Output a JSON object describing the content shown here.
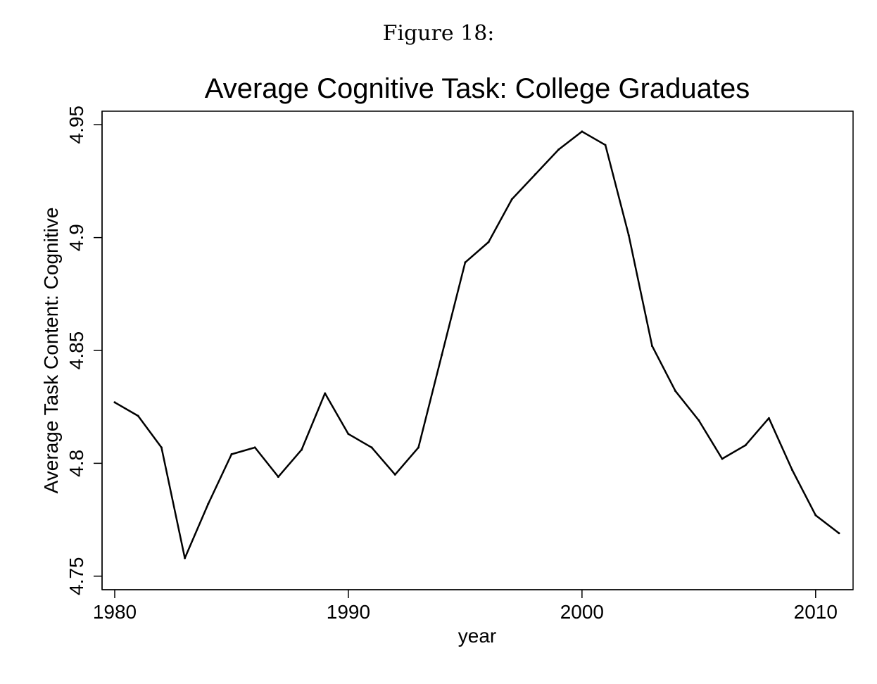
{
  "caption": "Figure 18:",
  "chart_data": {
    "type": "line",
    "title": "Average Cognitive Task: College Graduates",
    "xlabel": "year",
    "ylabel": "Average Task Content: Cognitive",
    "xlim": [
      1980,
      2011
    ],
    "ylim": [
      4.744,
      4.956
    ],
    "x_ticks": [
      1980,
      1990,
      2000,
      2010
    ],
    "y_ticks": [
      4.75,
      4.8,
      4.85,
      4.9,
      4.95
    ],
    "x_tick_labels": [
      "1980",
      "1990",
      "2000",
      "2010"
    ],
    "y_tick_labels": [
      "4.75",
      "4.8",
      "4.85",
      "4.9",
      "4.95"
    ],
    "grid": false,
    "color": "#000000",
    "series": [
      {
        "x": [
          1980,
          1981,
          1982,
          1983,
          1984,
          1985,
          1986,
          1987,
          1988,
          1989,
          1990,
          1991,
          1992,
          1993,
          1994,
          1995,
          1996,
          1997,
          1998,
          1999,
          2000,
          2001,
          2002,
          2003,
          2004,
          2005,
          2006,
          2007,
          2008,
          2009,
          2010,
          2011
        ],
        "values": [
          4.827,
          4.821,
          4.807,
          4.758,
          4.782,
          4.804,
          4.807,
          4.794,
          4.806,
          4.831,
          4.813,
          4.807,
          4.795,
          4.807,
          4.848,
          4.889,
          4.898,
          4.917,
          4.928,
          4.939,
          4.947,
          4.941,
          4.901,
          4.852,
          4.832,
          4.819,
          4.802,
          4.808,
          4.82,
          4.797,
          4.777,
          4.769
        ]
      }
    ]
  }
}
